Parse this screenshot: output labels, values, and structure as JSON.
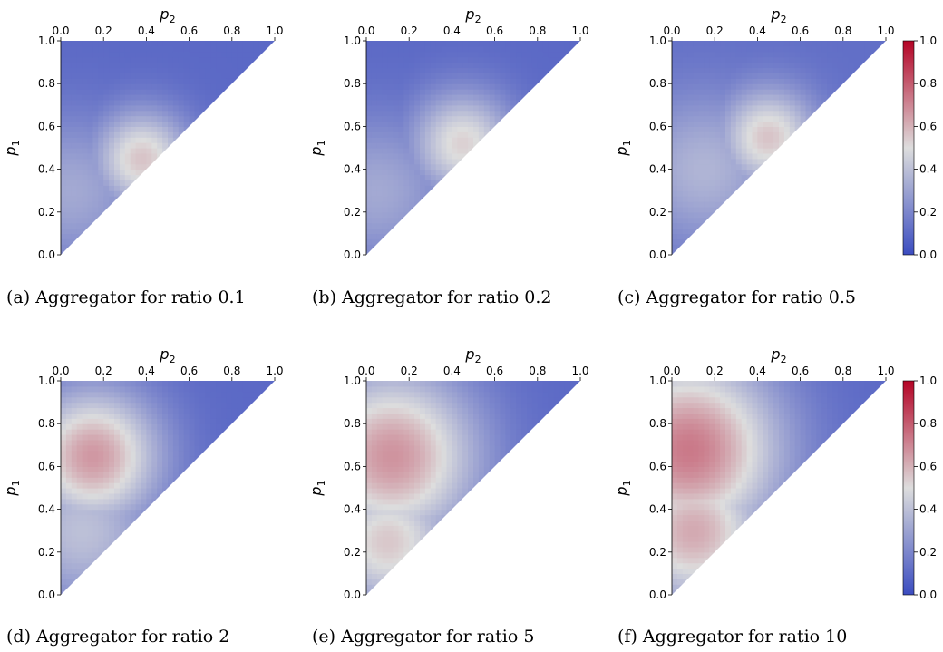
{
  "figure": {
    "chart_data": [
      {
        "type": "heatmap",
        "caption": "(a) Aggregator for ratio 0.1",
        "xlabel": "p2",
        "ylabel": "p1",
        "xlim": [
          0.0,
          1.0
        ],
        "ylim": [
          0.0,
          1.0
        ],
        "xticks": [
          "0.0",
          "0.2",
          "0.4",
          "0.6",
          "0.8",
          "1.0"
        ],
        "yticks": [
          "0.0",
          "0.2",
          "0.4",
          "0.6",
          "0.8",
          "1.0"
        ],
        "domain": "p2 <= p1",
        "base_value": 0.1,
        "blobs": [
          {
            "p2": 0.38,
            "p1": 0.45,
            "value": 0.56,
            "spread": 0.16
          },
          {
            "p2": 0.05,
            "p1": 0.3,
            "value": 0.32,
            "spread": 0.25
          }
        ],
        "colorbar": false
      },
      {
        "type": "heatmap",
        "caption": "(b) Aggregator for ratio 0.2",
        "xlabel": "p2",
        "ylabel": "p1",
        "xlim": [
          0.0,
          1.0
        ],
        "ylim": [
          0.0,
          1.0
        ],
        "xticks": [
          "0.0",
          "0.2",
          "0.4",
          "0.6",
          "0.8",
          "1.0"
        ],
        "yticks": [
          "0.0",
          "0.2",
          "0.4",
          "0.6",
          "0.8",
          "1.0"
        ],
        "domain": "p2 <= p1",
        "base_value": 0.1,
        "blobs": [
          {
            "p2": 0.45,
            "p1": 0.52,
            "value": 0.53,
            "spread": 0.17
          },
          {
            "p2": 0.05,
            "p1": 0.3,
            "value": 0.32,
            "spread": 0.25
          }
        ],
        "colorbar": false
      },
      {
        "type": "heatmap",
        "caption": "(c) Aggregator for ratio 0.5",
        "xlabel": "p2",
        "ylabel": "p1",
        "xlim": [
          0.0,
          1.0
        ],
        "ylim": [
          0.0,
          1.0
        ],
        "xticks": [
          "0.0",
          "0.2",
          "0.4",
          "0.6",
          "0.8",
          "1.0"
        ],
        "yticks": [
          "0.0",
          "0.2",
          "0.4",
          "0.6",
          "0.8",
          "1.0"
        ],
        "domain": "p2 <= p1",
        "base_value": 0.12,
        "blobs": [
          {
            "p2": 0.45,
            "p1": 0.55,
            "value": 0.56,
            "spread": 0.16
          },
          {
            "p2": 0.15,
            "p1": 0.4,
            "value": 0.36,
            "spread": 0.25
          }
        ],
        "colorbar": true
      },
      {
        "type": "heatmap",
        "caption": "(d) Aggregator for ratio 2",
        "xlabel": "p2",
        "ylabel": "p1",
        "xlim": [
          0.0,
          1.0
        ],
        "ylim": [
          0.0,
          1.0
        ],
        "xticks": [
          "0.0",
          "0.2",
          "0.4",
          "0.6",
          "0.8",
          "1.0"
        ],
        "yticks": [
          "0.0",
          "0.2",
          "0.4",
          "0.6",
          "0.8",
          "1.0"
        ],
        "domain": "p2 <= p1",
        "base_value": 0.1,
        "blobs": [
          {
            "p2": 0.15,
            "p1": 0.65,
            "value": 0.66,
            "spread": 0.22
          },
          {
            "p2": 0.1,
            "p1": 0.3,
            "value": 0.4,
            "spread": 0.25
          }
        ],
        "colorbar": false
      },
      {
        "type": "heatmap",
        "caption": "(e) Aggregator for ratio 5",
        "xlabel": "p2",
        "ylabel": "p1",
        "xlim": [
          0.0,
          1.0
        ],
        "ylim": [
          0.0,
          1.0
        ],
        "xticks": [
          "0.0",
          "0.2",
          "0.4",
          "0.6",
          "0.8",
          "1.0"
        ],
        "yticks": [
          "0.0",
          "0.2",
          "0.4",
          "0.6",
          "0.8",
          "1.0"
        ],
        "domain": "p2 <= p1",
        "base_value": 0.1,
        "blobs": [
          {
            "p2": 0.12,
            "p1": 0.65,
            "value": 0.67,
            "spread": 0.28
          },
          {
            "p2": 0.1,
            "p1": 0.25,
            "value": 0.55,
            "spread": 0.22
          }
        ],
        "colorbar": false
      },
      {
        "type": "heatmap",
        "caption": "(f) Aggregator for ratio 10",
        "xlabel": "p2",
        "ylabel": "p1",
        "xlim": [
          0.0,
          1.0
        ],
        "ylim": [
          0.0,
          1.0
        ],
        "xticks": [
          "0.0",
          "0.2",
          "0.4",
          "0.6",
          "0.8",
          "1.0"
        ],
        "yticks": [
          "0.0",
          "0.2",
          "0.4",
          "0.6",
          "0.8",
          "1.0"
        ],
        "domain": "p2 <= p1",
        "base_value": 0.1,
        "blobs": [
          {
            "p2": 0.08,
            "p1": 0.68,
            "value": 0.73,
            "spread": 0.3
          },
          {
            "p2": 0.1,
            "p1": 0.3,
            "value": 0.62,
            "spread": 0.24
          }
        ],
        "colorbar": true
      }
    ],
    "colorbar": {
      "colormap": "coolwarm",
      "range": [
        0.0,
        1.0
      ],
      "ticks": [
        "0.0",
        "0.2",
        "0.4",
        "0.6",
        "0.8",
        "1.0"
      ],
      "colors": {
        "low": "#3b4cc0",
        "mid": "#dddddd",
        "high": "#b40426"
      }
    }
  }
}
